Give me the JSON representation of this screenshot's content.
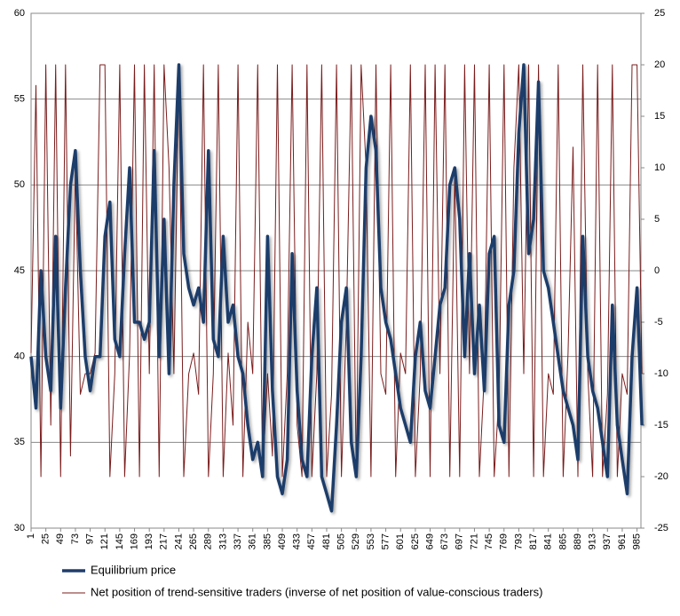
{
  "chart_data": {
    "type": "line",
    "x": [
      1,
      9,
      17,
      25,
      33,
      41,
      49,
      57,
      65,
      73,
      81,
      89,
      97,
      105,
      113,
      121,
      129,
      137,
      145,
      153,
      161,
      169,
      177,
      185,
      193,
      201,
      209,
      217,
      225,
      233,
      241,
      249,
      257,
      265,
      273,
      281,
      289,
      297,
      305,
      313,
      321,
      329,
      337,
      345,
      353,
      361,
      369,
      377,
      385,
      393,
      401,
      409,
      417,
      425,
      433,
      441,
      449,
      457,
      465,
      473,
      481,
      489,
      497,
      505,
      513,
      521,
      529,
      537,
      545,
      553,
      561,
      569,
      577,
      585,
      593,
      601,
      609,
      617,
      625,
      633,
      641,
      649,
      657,
      665,
      673,
      681,
      689,
      697,
      705,
      713,
      721,
      729,
      737,
      745,
      753,
      761,
      769,
      777,
      785,
      793,
      801,
      809,
      817,
      825,
      833,
      841,
      849,
      857,
      865,
      873,
      881,
      889,
      897,
      905,
      913,
      921,
      929,
      937,
      945,
      953,
      961,
      969,
      977,
      985,
      993
    ],
    "xlim": [
      1,
      1000
    ],
    "xticks": [
      1,
      25,
      49,
      73,
      97,
      121,
      145,
      169,
      193,
      217,
      241,
      265,
      289,
      313,
      337,
      361,
      385,
      409,
      433,
      457,
      481,
      505,
      529,
      553,
      577,
      601,
      625,
      649,
      673,
      697,
      721,
      745,
      769,
      793,
      817,
      841,
      865,
      889,
      913,
      937,
      961,
      985
    ],
    "ylim": [
      30,
      60
    ],
    "yticks": [
      30,
      35,
      40,
      45,
      50,
      55,
      60
    ],
    "y2lim": [
      -25,
      25
    ],
    "y2ticks": [
      -25,
      -20,
      -15,
      -10,
      -5,
      0,
      5,
      10,
      15,
      20,
      25
    ],
    "grid": true,
    "series": [
      {
        "name": "Equilibrium price",
        "color": "#1f3d6b",
        "axis": "y",
        "values": [
          40,
          37,
          45,
          40,
          38,
          47,
          37,
          44,
          50,
          52,
          45,
          40,
          38,
          40,
          40,
          47,
          49,
          41,
          40,
          46,
          51,
          42,
          42,
          41,
          42,
          52,
          40,
          48,
          39,
          50,
          57,
          46,
          44,
          43,
          44,
          42,
          52,
          41,
          40,
          47,
          42,
          43,
          40,
          39,
          36,
          34,
          35,
          33,
          47,
          38,
          33,
          32,
          34,
          46,
          38,
          34,
          33,
          40,
          44,
          33,
          32,
          31,
          36,
          42,
          44,
          35,
          33,
          40,
          51,
          54,
          52,
          44,
          42,
          41,
          39,
          37,
          36,
          35,
          40,
          42,
          38,
          37,
          40,
          43,
          44,
          50,
          51,
          48,
          40,
          46,
          39,
          43,
          38,
          46,
          47,
          36,
          35,
          43,
          45,
          53,
          57,
          46,
          48,
          56,
          45,
          44,
          42,
          40,
          38,
          37,
          36,
          34,
          47,
          40,
          38,
          37,
          35,
          33,
          43,
          36,
          34,
          32,
          40,
          44,
          36
        ]
      },
      {
        "name": "Net position of trend-sensitive traders (inverse of net position of value-conscious traders)",
        "color": "#7a1c1c",
        "axis": "y2",
        "values": [
          -8,
          18,
          -20,
          20,
          -15,
          20,
          -20,
          20,
          -18,
          10,
          -12,
          -10,
          -10,
          -8,
          20,
          20,
          -20,
          -10,
          20,
          -20,
          -8,
          20,
          -20,
          20,
          -10,
          20,
          -20,
          20,
          10,
          -10,
          20,
          -20,
          -10,
          -8,
          -12,
          20,
          -20,
          -10,
          20,
          -20,
          -8,
          -15,
          20,
          -20,
          -5,
          -10,
          20,
          -20,
          -10,
          -18,
          20,
          -20,
          -10,
          20,
          -15,
          -20,
          20,
          -20,
          -10,
          20,
          -20,
          -12,
          20,
          -20,
          -5,
          20,
          -20,
          20,
          10,
          -20,
          20,
          -10,
          -12,
          20,
          -20,
          -8,
          -10,
          20,
          -20,
          -10,
          20,
          -20,
          20,
          -10,
          20,
          -20,
          10,
          -20,
          20,
          -10,
          20,
          -20,
          -10,
          20,
          -20,
          -12,
          20,
          -20,
          10,
          20,
          -10,
          20,
          -20,
          20,
          -20,
          -10,
          -12,
          20,
          -20,
          -8,
          12,
          -20,
          20,
          -10,
          -20,
          20,
          -20,
          -12,
          20,
          -20,
          -10,
          -12,
          20,
          20,
          -10
        ]
      }
    ]
  }
}
